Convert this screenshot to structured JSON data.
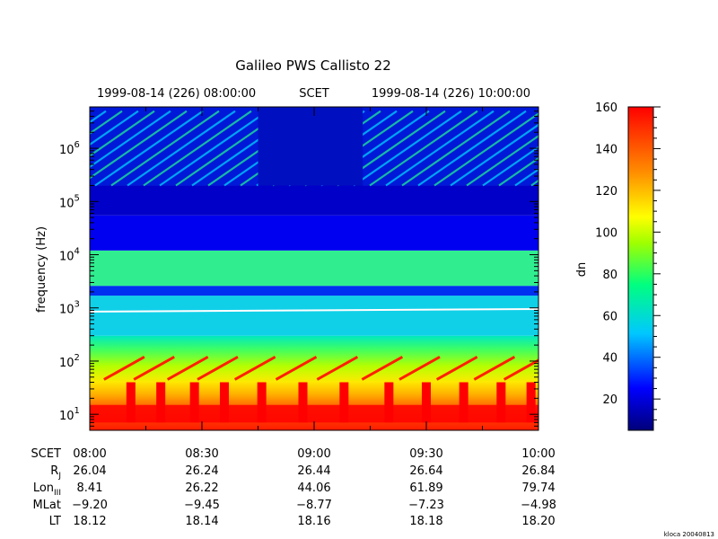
{
  "chart_data": {
    "type": "heatmap",
    "title": "Galileo PWS Callisto 22",
    "top_axis": {
      "left_label": "1999-08-14 (226) 08:00:00",
      "center_label": "SCET",
      "right_label": "1999-08-14 (226) 10:00:00"
    },
    "ylabel": "frequency (Hz)",
    "yscale": "log",
    "ylim": [
      5,
      6000000
    ],
    "y_ticks": [
      {
        "base": "10",
        "exp": "1",
        "value": 10
      },
      {
        "base": "10",
        "exp": "2",
        "value": 100
      },
      {
        "base": "10",
        "exp": "3",
        "value": 1000
      },
      {
        "base": "10",
        "exp": "4",
        "value": 10000
      },
      {
        "base": "10",
        "exp": "5",
        "value": 100000
      },
      {
        "base": "10",
        "exp": "6",
        "value": 1000000
      }
    ],
    "xlim": [
      "08:00",
      "10:00"
    ],
    "x_ticks": [
      "08:00",
      "08:30",
      "09:00",
      "09:30",
      "10:00"
    ],
    "ephemeris": [
      {
        "label": "SCET",
        "sub": "",
        "values": [
          "08:00",
          "08:30",
          "09:00",
          "09:30",
          "10:00"
        ]
      },
      {
        "label": "R",
        "sub": "J",
        "values": [
          "26.04",
          "26.24",
          "26.44",
          "26.64",
          "26.84"
        ]
      },
      {
        "label": "Lon",
        "sub": "III",
        "values": [
          "8.41",
          "26.22",
          "44.06",
          "61.89",
          "79.74"
        ]
      },
      {
        "label": "MLat",
        "sub": "",
        "values": [
          "−9.20",
          "−9.45",
          "−8.77",
          "−7.23",
          "−4.98"
        ]
      },
      {
        "label": "LT",
        "sub": "",
        "values": [
          "18.12",
          "18.14",
          "18.16",
          "18.18",
          "18.20"
        ]
      }
    ],
    "colorbar": {
      "label": "dn",
      "range": [
        5,
        160
      ],
      "ticks": [
        20,
        40,
        60,
        80,
        100,
        120,
        140,
        160
      ]
    },
    "overlay_line": {
      "color": "#ffffff",
      "frequency_hz": 850
    },
    "footer_stamp": "kloca 20040813"
  }
}
